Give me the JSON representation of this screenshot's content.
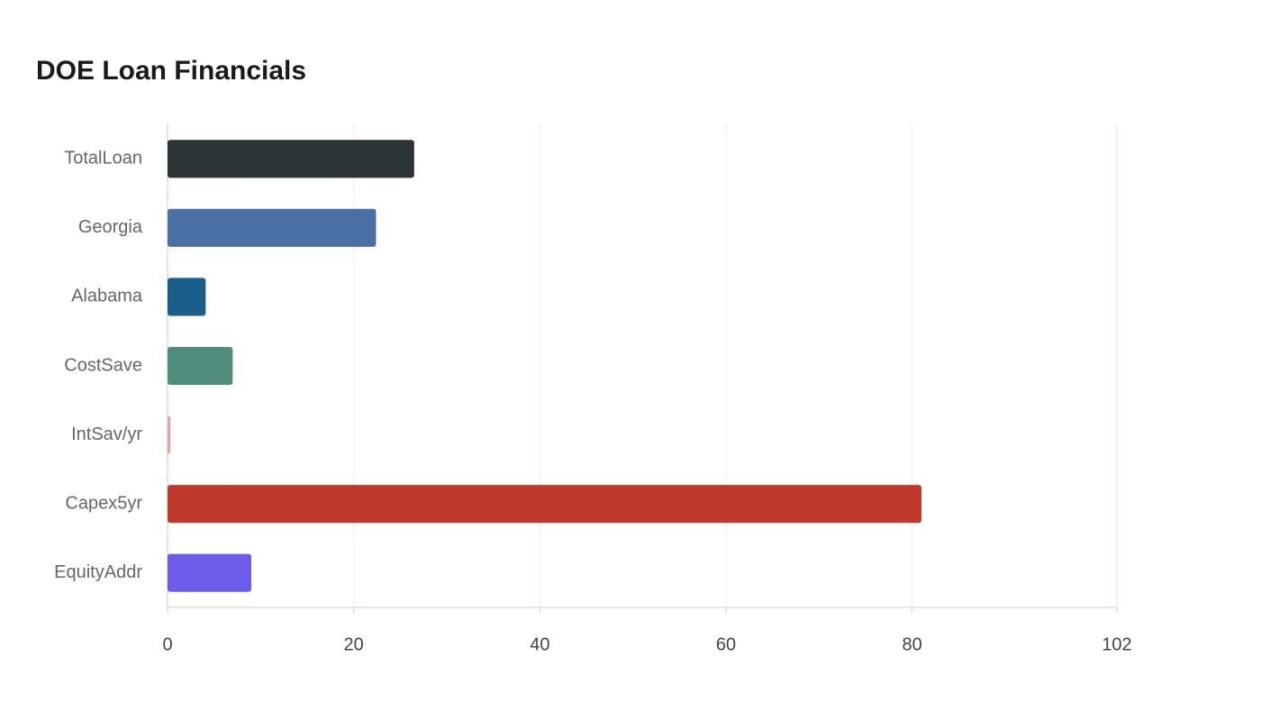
{
  "chart_data": {
    "type": "hbar",
    "title": "DOE Loan Financials",
    "categories": [
      "TotalLoan",
      "Georgia",
      "Alabama",
      "CostSave",
      "IntSav/yr",
      "Capex5yr",
      "EquityAddr"
    ],
    "values": [
      26.5,
      22.4,
      4.1,
      7.0,
      0.3,
      81.0,
      9.0
    ],
    "colors": [
      "#2d3436",
      "#4a6fa5",
      "#1a5f8b",
      "#4e8d7c",
      "#e8a0a0",
      "#c0392b",
      "#6c5ce7"
    ],
    "xlim": [
      0,
      102
    ],
    "xticks": [
      0,
      20,
      40,
      60,
      80,
      102
    ],
    "grid": true
  }
}
